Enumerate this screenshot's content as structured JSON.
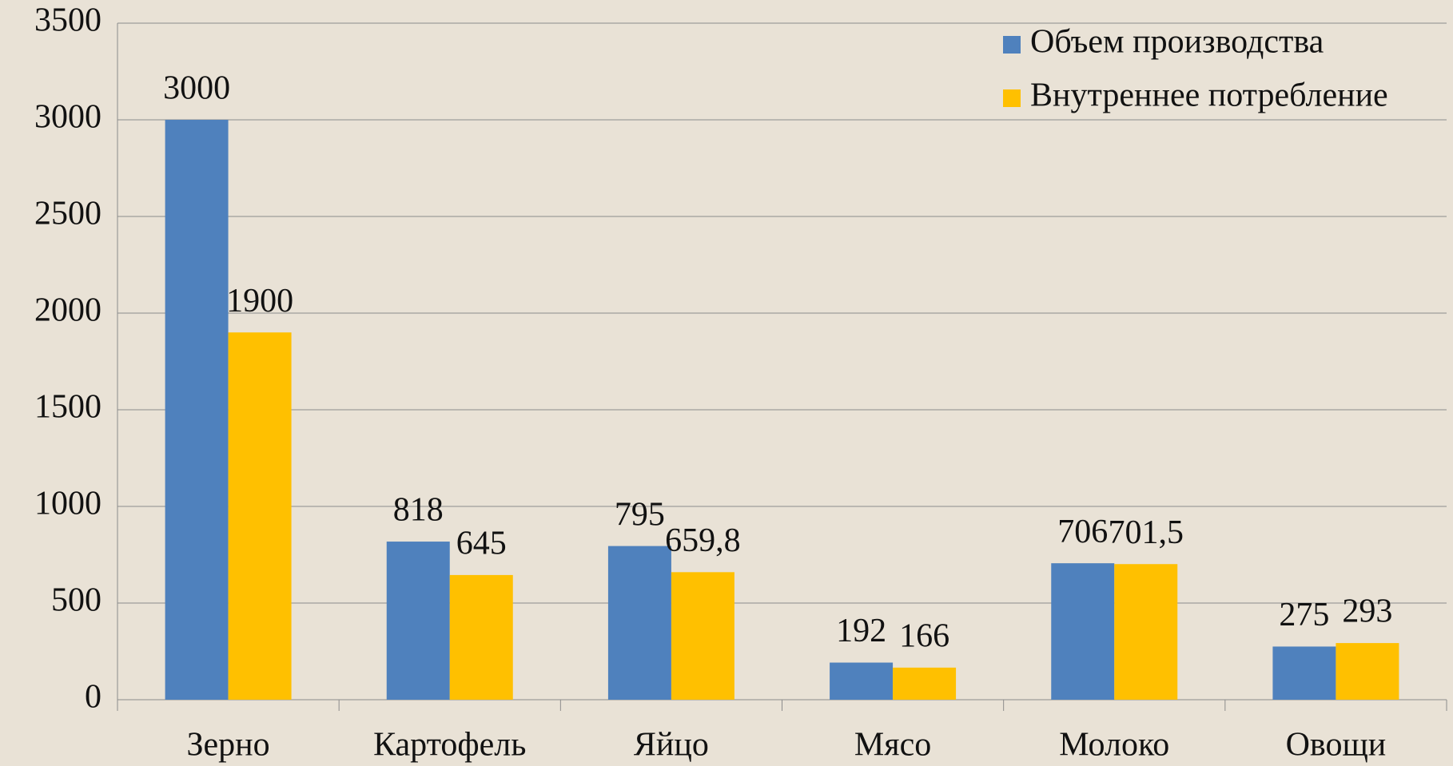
{
  "chart_data": {
    "type": "bar",
    "categories": [
      "Зерно",
      "Картофель",
      "Яйцо",
      "Мясо",
      "Молоко",
      "Овощи"
    ],
    "series": [
      {
        "name": "Объем производства",
        "color": "#4f81bd",
        "values": [
          3000,
          818,
          795,
          192,
          706,
          275
        ],
        "value_labels": [
          "3000",
          "818",
          "795",
          "192",
          "706",
          "275"
        ]
      },
      {
        "name": "Внутреннее потребление",
        "color": "#ffc000",
        "values": [
          1900,
          645,
          659.8,
          166,
          701.5,
          293
        ],
        "value_labels": [
          "1900",
          "645",
          "659,8",
          "166",
          "701,5",
          "293"
        ]
      }
    ],
    "ylim": [
      0,
      3500
    ],
    "yticks": [
      0,
      500,
      1000,
      1500,
      2000,
      2500,
      3000,
      3500
    ],
    "grid": true,
    "legend": "top-right"
  }
}
